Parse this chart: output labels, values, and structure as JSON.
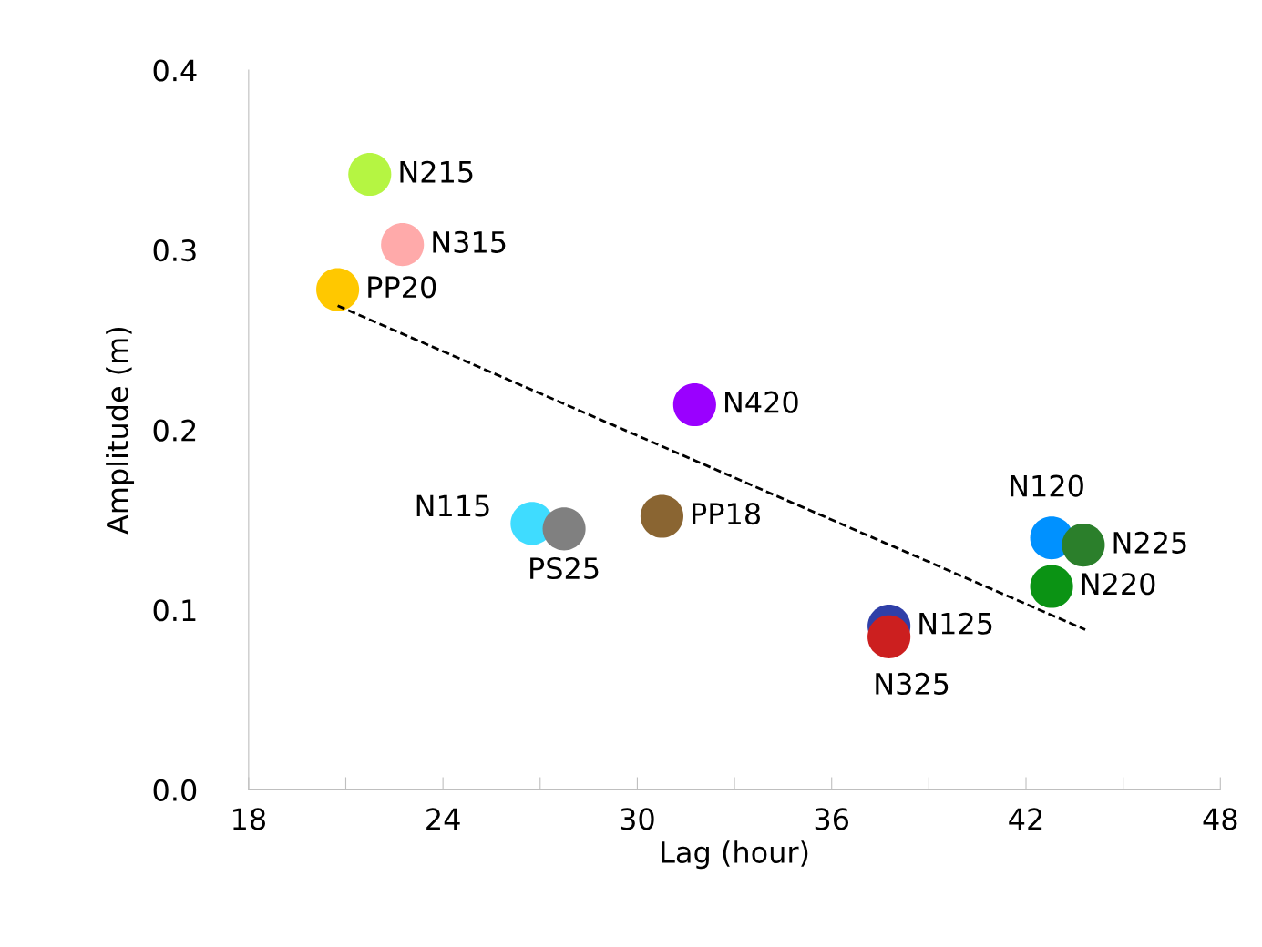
{
  "chart_data": {
    "type": "scatter",
    "xlabel": "Lag (hour)",
    "ylabel": "Amplitude (m)",
    "xlim": [
      18,
      48
    ],
    "ylim": [
      0,
      0.4
    ],
    "xticks": [
      18,
      {
        "value": 21,
        "label": null
      },
      24,
      {
        "value": 27,
        "label": null
      },
      30,
      {
        "value": 33,
        "label": null
      },
      36,
      {
        "value": 39,
        "label": null
      },
      42,
      {
        "value": 45,
        "label": null
      },
      48
    ],
    "yticks": [
      {
        "value": 0,
        "label": "0.0"
      },
      0.1,
      0.2,
      0.3,
      0.4
    ],
    "grid": false,
    "legend": false,
    "marker": "circle",
    "series": [
      {
        "name": "N215",
        "color": "#b5f542",
        "x": [
          21.74
        ],
        "values": [
          0.342
        ]
      },
      {
        "name": "N315",
        "color": "#ffaaaa",
        "x": [
          22.75
        ],
        "values": [
          0.303
        ]
      },
      {
        "name": "PP20",
        "color": "#ffc800",
        "x": [
          20.75
        ],
        "values": [
          0.278
        ]
      },
      {
        "name": "N420",
        "color": "#9a00ff",
        "x": [
          31.77
        ],
        "values": [
          0.214
        ]
      },
      {
        "name": "N115",
        "color": "#3fdcff",
        "x": [
          26.75
        ],
        "values": [
          0.148
        ]
      },
      {
        "name": "PS25",
        "color": "#808080",
        "x": [
          27.74
        ],
        "values": [
          0.145
        ]
      },
      {
        "name": "PP18",
        "color": "#8a6532",
        "x": [
          30.76
        ],
        "values": [
          0.152
        ]
      },
      {
        "name": "N120",
        "color": "#0091ff",
        "x": [
          42.79
        ],
        "values": [
          0.14
        ]
      },
      {
        "name": "N225",
        "color": "#2b7f2b",
        "x": [
          43.77
        ],
        "values": [
          0.136
        ]
      },
      {
        "name": "N220",
        "color": "#0b9314",
        "x": [
          42.79
        ],
        "values": [
          0.113
        ]
      },
      {
        "name": "N125",
        "color": "#2f3fa8",
        "x": [
          37.77
        ],
        "values": [
          0.091
        ]
      },
      {
        "name": "N325",
        "color": "#cc1f1f",
        "x": [
          37.77
        ],
        "values": [
          0.085
        ]
      },
      {
        "type": "line",
        "color": "#000000",
        "line_style": "dashed",
        "marker": "none",
        "x": [
          20.75,
          43.83
        ],
        "values": [
          0.269,
          0.089
        ]
      }
    ]
  }
}
